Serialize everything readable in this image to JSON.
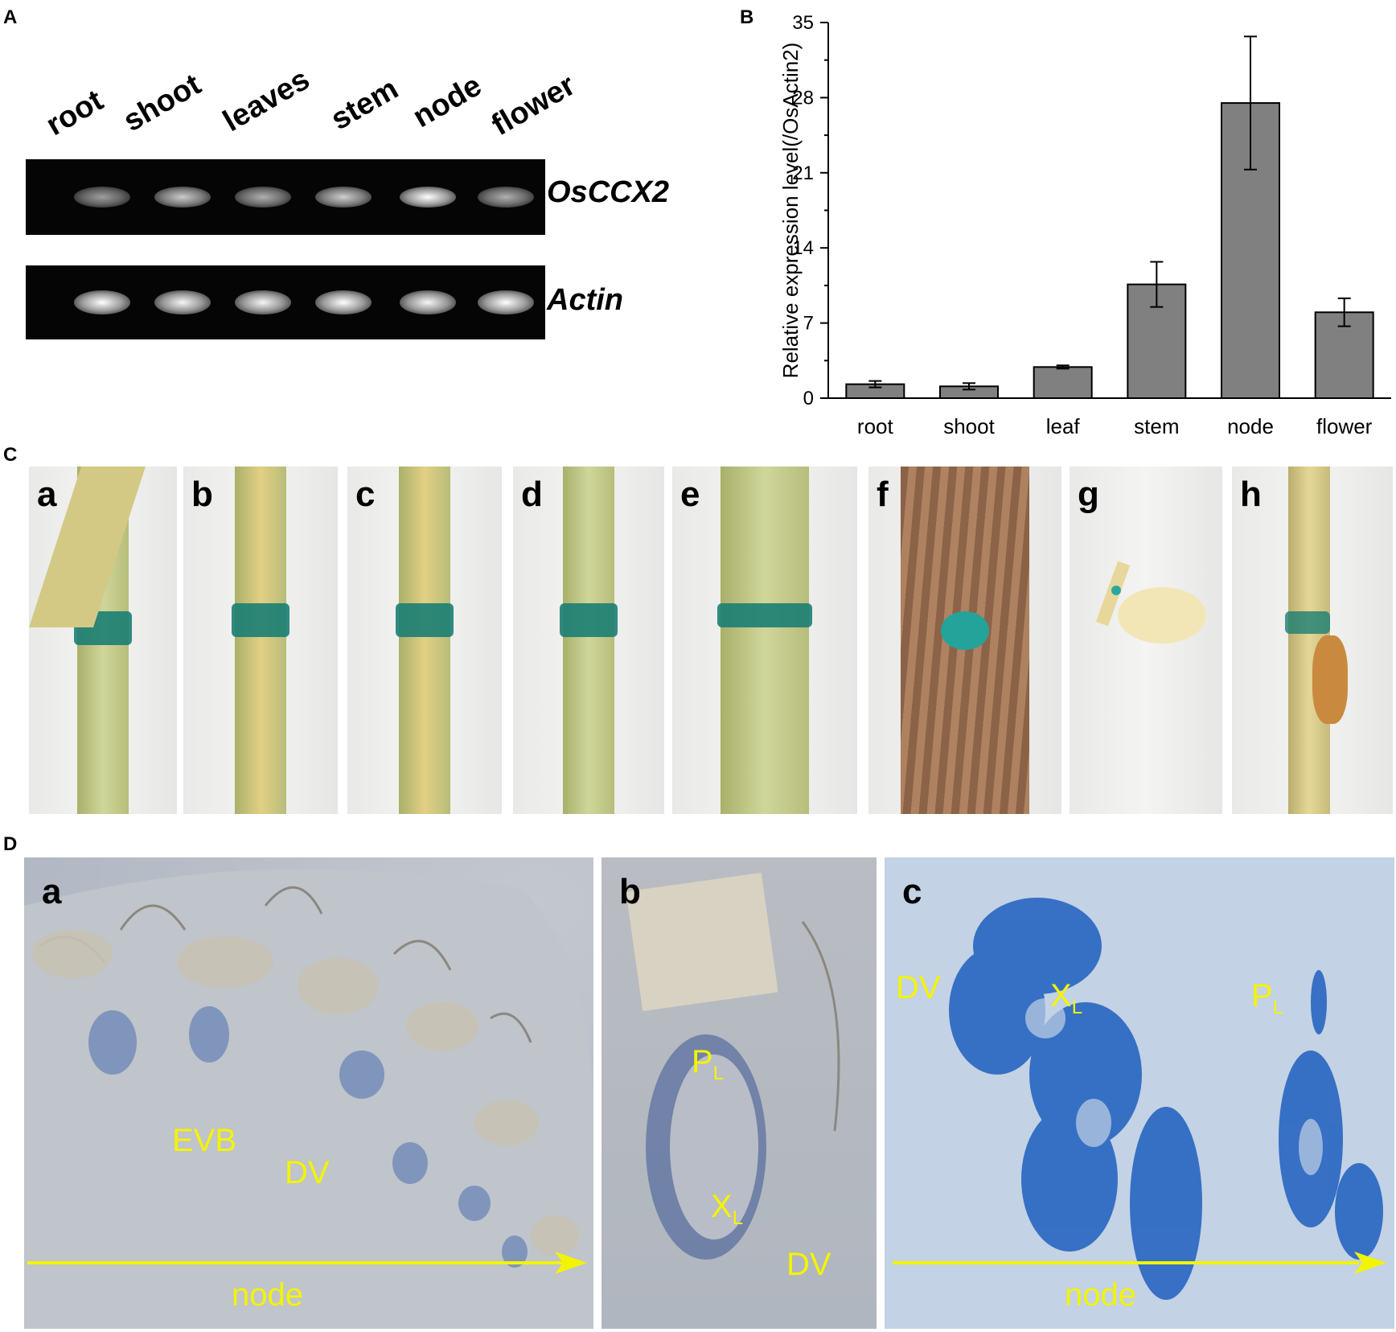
{
  "panels": {
    "A": "A",
    "B": "B",
    "C": "C",
    "D": "D"
  },
  "gel": {
    "lanes": [
      "root",
      "shoot",
      "leaves",
      "stem",
      "node",
      "flower"
    ],
    "gene_top": "OsCCX2",
    "gene_bottom": "Actin",
    "top_band_intensity": [
      0.45,
      0.7,
      0.55,
      0.72,
      1.0,
      0.55
    ],
    "bottom_band_intensity": [
      1.0,
      0.95,
      0.95,
      1.0,
      0.95,
      1.0
    ]
  },
  "chart_data": {
    "type": "bar",
    "categories": [
      "root",
      "shoot",
      "leaf",
      "stem",
      "node",
      "flower"
    ],
    "values": [
      1.3,
      1.1,
      2.9,
      10.6,
      27.5,
      8.0
    ],
    "errors": [
      0.3,
      0.3,
      0.15,
      2.1,
      6.2,
      1.3
    ],
    "ylabel": "Relative expression level(/OsActin2)",
    "ylim": [
      0,
      35
    ],
    "yticks": [
      0,
      7,
      14,
      21,
      28,
      35
    ],
    "bar_color": "#808080"
  },
  "photos_c": {
    "letters": [
      "a",
      "b",
      "c",
      "d",
      "e",
      "f",
      "g",
      "h"
    ]
  },
  "photos_d": {
    "letters": [
      "a",
      "b",
      "c"
    ],
    "a_labels": [
      "EVB",
      "DV",
      "node"
    ],
    "b_labels": {
      "p": "P",
      "p_sub": "L",
      "x": "X",
      "x_sub": "L",
      "dv": "DV"
    },
    "c_labels": {
      "dv": "DV",
      "x": "X",
      "x_sub": "L",
      "p": "P",
      "p_sub": "L",
      "node": "node"
    }
  },
  "colors": {
    "gus_blue": "#1e5fbf",
    "label_yellow": "#f4f400",
    "stem_yellow": "#d9cf7a"
  }
}
